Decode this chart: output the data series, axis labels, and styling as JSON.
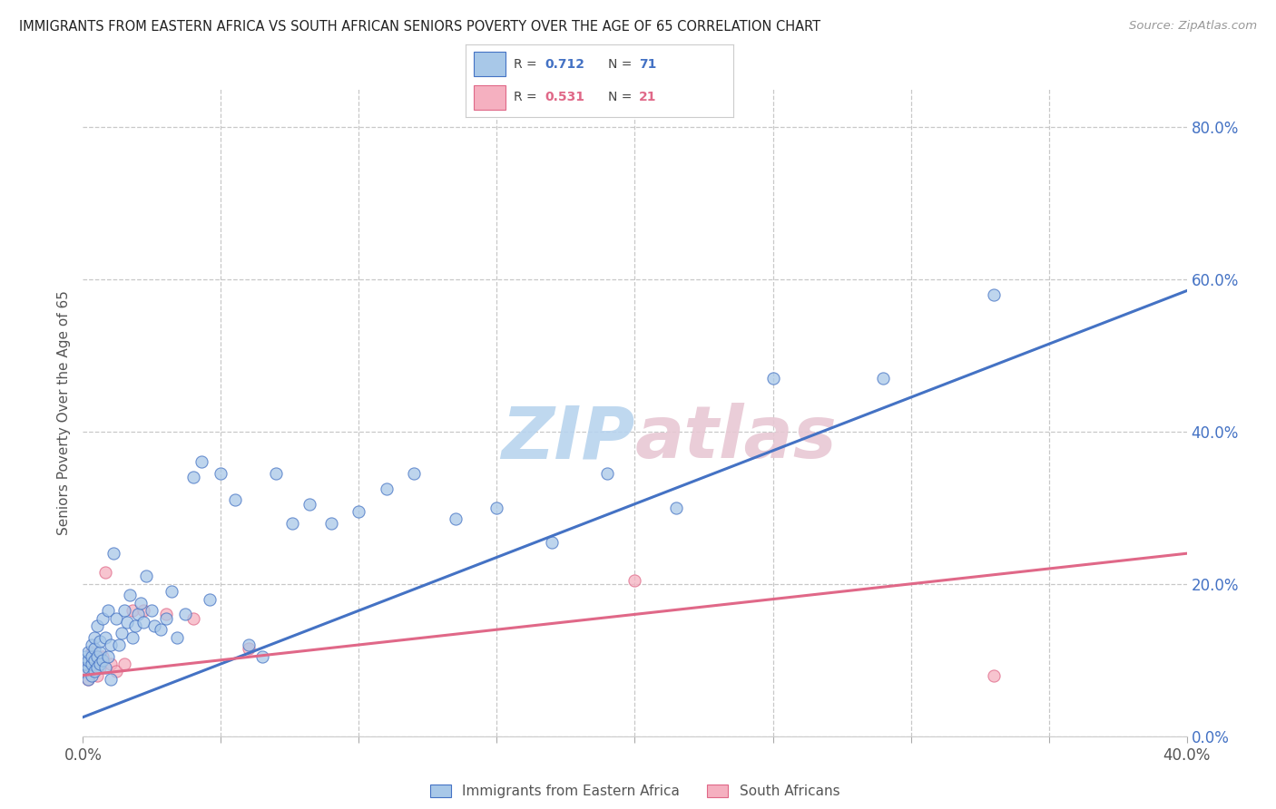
{
  "title": "IMMIGRANTS FROM EASTERN AFRICA VS SOUTH AFRICAN SENIORS POVERTY OVER THE AGE OF 65 CORRELATION CHART",
  "source": "Source: ZipAtlas.com",
  "ylabel": "Seniors Poverty Over the Age of 65",
  "legend_label_blue": "Immigrants from Eastern Africa",
  "legend_label_pink": "South Africans",
  "r_blue": "0.712",
  "n_blue": "71",
  "r_pink": "0.531",
  "n_pink": "21",
  "xlim": [
    0.0,
    0.4
  ],
  "ylim": [
    0.0,
    0.85
  ],
  "xticks_labeled": [
    0.0,
    0.4
  ],
  "xticks_minor": [
    0.05,
    0.1,
    0.15,
    0.2,
    0.25,
    0.3,
    0.35
  ],
  "yticks": [
    0.0,
    0.2,
    0.4,
    0.6,
    0.8
  ],
  "blue_fill": "#a8c8e8",
  "blue_edge": "#4472c4",
  "pink_fill": "#f5b0c0",
  "pink_edge": "#e06888",
  "grid_color": "#c8c8c8",
  "blue_scatter_x": [
    0.0005,
    0.001,
    0.001,
    0.002,
    0.002,
    0.002,
    0.002,
    0.003,
    0.003,
    0.003,
    0.003,
    0.004,
    0.004,
    0.004,
    0.004,
    0.005,
    0.005,
    0.005,
    0.006,
    0.006,
    0.006,
    0.007,
    0.007,
    0.008,
    0.008,
    0.009,
    0.009,
    0.01,
    0.01,
    0.011,
    0.012,
    0.013,
    0.014,
    0.015,
    0.016,
    0.017,
    0.018,
    0.019,
    0.02,
    0.021,
    0.022,
    0.023,
    0.025,
    0.026,
    0.028,
    0.03,
    0.032,
    0.034,
    0.037,
    0.04,
    0.043,
    0.046,
    0.05,
    0.055,
    0.06,
    0.065,
    0.07,
    0.076,
    0.082,
    0.09,
    0.1,
    0.11,
    0.12,
    0.135,
    0.15,
    0.17,
    0.19,
    0.215,
    0.25,
    0.29,
    0.33
  ],
  "blue_scatter_y": [
    0.085,
    0.095,
    0.105,
    0.075,
    0.09,
    0.1,
    0.11,
    0.08,
    0.095,
    0.105,
    0.12,
    0.085,
    0.1,
    0.115,
    0.13,
    0.09,
    0.105,
    0.145,
    0.095,
    0.11,
    0.125,
    0.1,
    0.155,
    0.09,
    0.13,
    0.105,
    0.165,
    0.075,
    0.12,
    0.24,
    0.155,
    0.12,
    0.135,
    0.165,
    0.15,
    0.185,
    0.13,
    0.145,
    0.16,
    0.175,
    0.15,
    0.21,
    0.165,
    0.145,
    0.14,
    0.155,
    0.19,
    0.13,
    0.16,
    0.34,
    0.36,
    0.18,
    0.345,
    0.31,
    0.12,
    0.105,
    0.345,
    0.28,
    0.305,
    0.28,
    0.295,
    0.325,
    0.345,
    0.285,
    0.3,
    0.255,
    0.345,
    0.3,
    0.47,
    0.47,
    0.58
  ],
  "pink_scatter_x": [
    0.0005,
    0.001,
    0.002,
    0.003,
    0.003,
    0.004,
    0.005,
    0.005,
    0.006,
    0.007,
    0.008,
    0.01,
    0.012,
    0.015,
    0.018,
    0.022,
    0.03,
    0.04,
    0.06,
    0.2,
    0.33
  ],
  "pink_scatter_y": [
    0.085,
    0.095,
    0.075,
    0.095,
    0.11,
    0.1,
    0.08,
    0.105,
    0.09,
    0.105,
    0.215,
    0.095,
    0.085,
    0.095,
    0.165,
    0.165,
    0.16,
    0.155,
    0.115,
    0.205,
    0.08
  ],
  "blue_trend_x": [
    0.0,
    0.4
  ],
  "blue_trend_y": [
    0.025,
    0.585
  ],
  "pink_trend_x": [
    0.0,
    0.4
  ],
  "pink_trend_y": [
    0.08,
    0.24
  ]
}
